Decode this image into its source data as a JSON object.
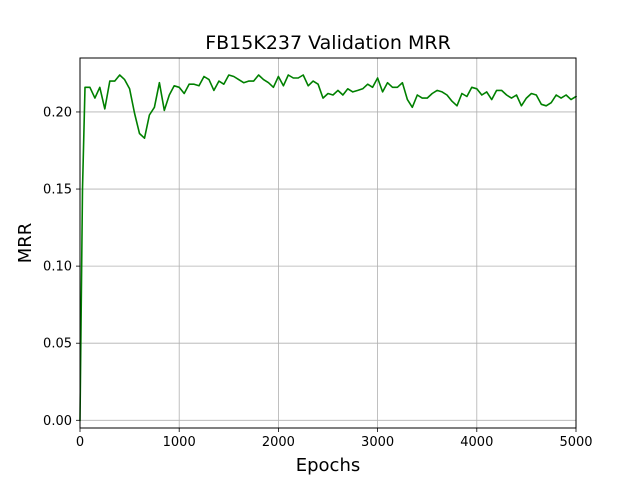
{
  "chart_data": {
    "type": "line",
    "title": "FB15K237 Validation MRR",
    "xlabel": "Epochs",
    "ylabel": "MRR",
    "xlim": [
      0,
      5000
    ],
    "ylim": [
      -0.005,
      0.235
    ],
    "grid": true,
    "xticks": [
      0,
      1000,
      2000,
      3000,
      4000,
      5000
    ],
    "xtick_labels": [
      "0",
      "1000",
      "2000",
      "3000",
      "4000",
      "5000"
    ],
    "yticks": [
      0.0,
      0.05,
      0.1,
      0.15,
      0.2
    ],
    "ytick_labels": [
      "0.00",
      "0.05",
      "0.10",
      "0.15",
      "0.20"
    ],
    "line_color": "#008000",
    "series": [
      {
        "x": [
          0,
          25,
          50,
          100,
          150,
          200,
          250,
          300,
          350,
          400,
          450,
          500,
          550,
          600,
          650,
          700,
          750,
          800,
          850,
          900,
          950,
          1000,
          1050,
          1100,
          1150,
          1200,
          1250,
          1300,
          1350,
          1400,
          1450,
          1500,
          1550,
          1600,
          1650,
          1700,
          1750,
          1800,
          1850,
          1900,
          1950,
          2000,
          2050,
          2100,
          2150,
          2200,
          2250,
          2300,
          2350,
          2400,
          2450,
          2500,
          2550,
          2600,
          2650,
          2700,
          2750,
          2800,
          2850,
          2900,
          2950,
          3000,
          3050,
          3100,
          3150,
          3200,
          3250,
          3300,
          3350,
          3400,
          3450,
          3500,
          3550,
          3600,
          3650,
          3700,
          3750,
          3800,
          3850,
          3900,
          3950,
          4000,
          4050,
          4100,
          4150,
          4200,
          4250,
          4300,
          4350,
          4400,
          4450,
          4500,
          4550,
          4600,
          4650,
          4700,
          4750,
          4800,
          4850,
          4900,
          4950,
          5000
        ],
        "y": [
          0.0,
          0.15,
          0.216,
          0.216,
          0.209,
          0.216,
          0.202,
          0.22,
          0.22,
          0.224,
          0.221,
          0.215,
          0.199,
          0.186,
          0.183,
          0.198,
          0.203,
          0.219,
          0.201,
          0.211,
          0.217,
          0.216,
          0.212,
          0.218,
          0.218,
          0.217,
          0.223,
          0.221,
          0.214,
          0.22,
          0.218,
          0.224,
          0.223,
          0.221,
          0.219,
          0.22,
          0.22,
          0.224,
          0.221,
          0.219,
          0.216,
          0.223,
          0.217,
          0.224,
          0.222,
          0.222,
          0.224,
          0.217,
          0.22,
          0.218,
          0.209,
          0.212,
          0.211,
          0.214,
          0.211,
          0.215,
          0.213,
          0.214,
          0.215,
          0.218,
          0.216,
          0.222,
          0.213,
          0.219,
          0.216,
          0.216,
          0.219,
          0.208,
          0.203,
          0.211,
          0.209,
          0.209,
          0.212,
          0.214,
          0.213,
          0.211,
          0.207,
          0.204,
          0.212,
          0.21,
          0.216,
          0.215,
          0.211,
          0.213,
          0.208,
          0.214,
          0.214,
          0.211,
          0.209,
          0.211,
          0.204,
          0.209,
          0.212,
          0.211,
          0.205,
          0.204,
          0.206,
          0.211,
          0.209,
          0.211,
          0.208,
          0.21
        ]
      }
    ]
  }
}
